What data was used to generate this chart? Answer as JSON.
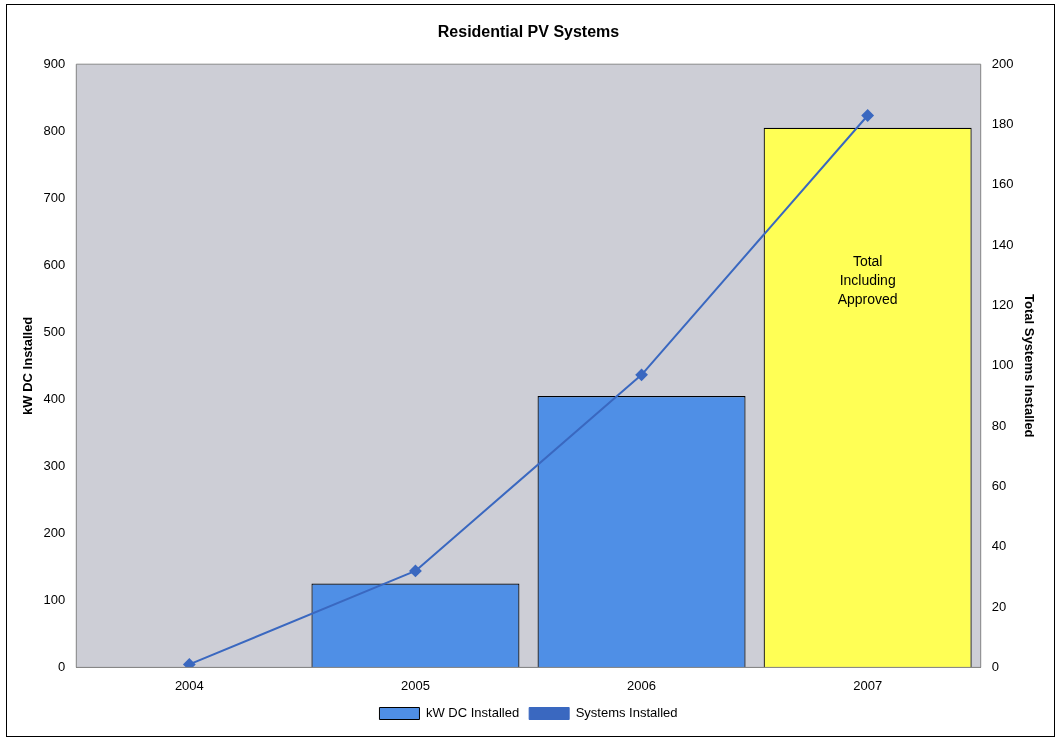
{
  "chart_data": {
    "type": "bar",
    "title": "Residential PV Systems",
    "ylabel": "kW DC Installed",
    "y2label": "Total Systems Installed",
    "categories": [
      "2004",
      "2005",
      "2006",
      "2007"
    ],
    "series": [
      {
        "name": "kW DC Installed",
        "color": "#4f8fe6",
        "colors": [
          "#4f8fe6",
          "#4f8fe6",
          "#4f8fe6",
          "#ffff55"
        ],
        "values": [
          0,
          125,
          405,
          805
        ]
      },
      {
        "name": "Systems Installed",
        "type": "line",
        "axis": "y2",
        "color": "#3a68c0",
        "marker": "diamond",
        "values": [
          1,
          32,
          97,
          183
        ]
      }
    ],
    "ylim": [
      0,
      900
    ],
    "yticks": [
      0,
      100,
      200,
      300,
      400,
      500,
      600,
      700,
      800,
      900
    ],
    "y2lim": [
      0,
      200
    ],
    "y2ticks": [
      0,
      20,
      40,
      60,
      80,
      100,
      120,
      140,
      160,
      180,
      200
    ],
    "annotations": [
      "Total Including Approved"
    ],
    "grid": false,
    "legend": "bottom"
  }
}
